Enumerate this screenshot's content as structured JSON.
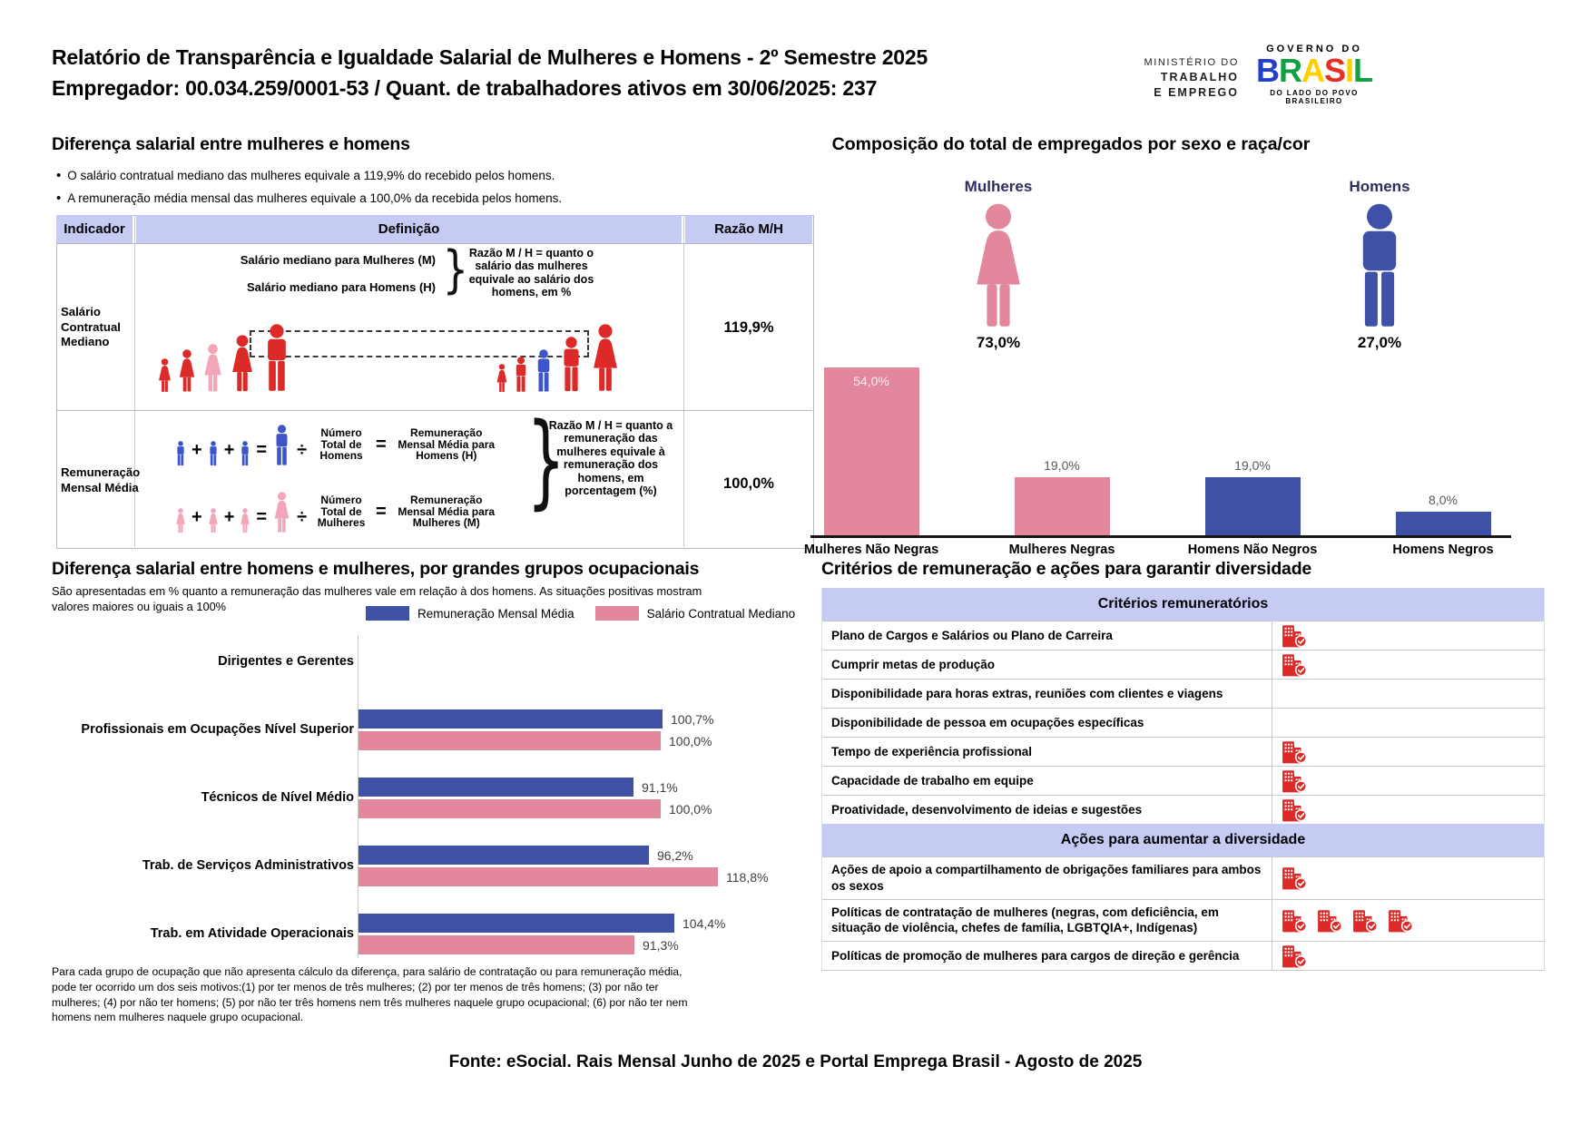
{
  "colors": {
    "pink": "#e2879c",
    "blue": "#3e51a7",
    "red": "#db2a28",
    "light_pink": "#f2a6b8",
    "figure_blue": "#3c55c8",
    "lavender": "#c6cbf4",
    "navy_text": "#2e2c60",
    "gray_label": "#595959"
  },
  "header": {
    "title_line1": "Relatório de Transparência e Igualdade Salarial de Mulheres e Homens - 2º Semestre 2025",
    "title_line2": "Empregador: 00.034.259/0001-53 / Quant. de trabalhadores ativos em 30/06/2025: 237",
    "ministry_logo": {
      "line1": "MINISTÉRIO DO",
      "line2": "TRABALHO",
      "line3": "E EMPREGO"
    },
    "gov_logo": {
      "top": "GOVERNO DO",
      "name": "BRASIL",
      "letters": [
        {
          "ch": "B",
          "color": "#2540c8"
        },
        {
          "ch": "R",
          "color": "#12a141"
        },
        {
          "ch": "A",
          "color": "#ffcf00"
        },
        {
          "ch": "S",
          "color": "#e23125"
        },
        {
          "ch": "I",
          "color": "#ffcf00"
        },
        {
          "ch": "L",
          "color": "#12a141"
        }
      ],
      "tagline": "DO LADO DO POVO BRASILEIRO"
    }
  },
  "salary_gap": {
    "heading": "Diferença salarial entre mulheres e homens",
    "bullets": [
      "O salário contratual mediano das mulheres equivale a 119,9% do recebido pelos homens.",
      "A remuneração média mensal das mulheres equivale a 100,0% da recebida pelos homens."
    ],
    "table": {
      "headers": [
        "Indicador",
        "Definição",
        "Razão M/H"
      ],
      "brace": "}",
      "operators": {
        "plus": "+",
        "equals": "=",
        "divide": "÷"
      },
      "rows": [
        {
          "indicator": "Salário Contratual Mediano",
          "def_line1": "Salário mediano para Mulheres (M)",
          "def_line2": "Salário mediano para Homens (H)",
          "note": "Razão M / H = quanto o salário das mulheres equivale ao salário dos homens, em %",
          "ratio": "119,9%"
        },
        {
          "indicator": "Remuneração Mensal Média",
          "men_formula": {
            "count_label": "Número Total de Homens",
            "result_label": "Remuneração Mensal Média para Homens (H)"
          },
          "women_formula": {
            "count_label": "Número Total de Mulheres",
            "result_label": "Remuneração Mensal Média para Mulheres (M)"
          },
          "note": "Razão M / H = quanto a remuneração das mulheres equivale à remuneração dos homens, em porcentagem (%)",
          "ratio": "100,0%"
        }
      ]
    }
  },
  "composition": {
    "heading": "Composição do total de empregados por sexo e raça/cor",
    "female": {
      "label": "Mulheres",
      "value": "73,0%",
      "icon": "woman-silhouette"
    },
    "male": {
      "label": "Homens",
      "value": "27,0%",
      "icon": "man-silhouette"
    },
    "chart_data": {
      "type": "bar",
      "categories": [
        "Mulheres Não Negras",
        "Mulheres Negras",
        "Homens Não Negros",
        "Homens Negros"
      ],
      "values": [
        54.0,
        19.0,
        19.0,
        8.0
      ],
      "labels": [
        "54,0%",
        "19,0%",
        "19,0%",
        "8,0%"
      ],
      "bar_colors": [
        "pink",
        "pink",
        "blue",
        "blue"
      ],
      "ylim": [
        0,
        60
      ],
      "grid": false,
      "value_label_position": [
        "inside-top",
        "above",
        "above",
        "above"
      ]
    }
  },
  "occupational": {
    "heading": "Diferença salarial entre homens e mulheres, por grandes grupos ocupacionais",
    "subtitle": "São apresentadas em % quanto a remuneração das mulheres vale em relação à dos homens. As situações positivas mostram valores maiores ou iguais a 100%",
    "legend": [
      "Remuneração Mensal Média",
      "Salário Contratual Mediano"
    ],
    "chart_data": {
      "type": "bar",
      "orientation": "horizontal",
      "unit": "%",
      "series_names": [
        "Remuneração Mensal Média",
        "Salário Contratual Mediano"
      ],
      "series_colors": [
        "blue",
        "pink"
      ],
      "groups": [
        {
          "label": "Dirigentes e Gerentes",
          "remuneracao_mensal_media": null,
          "salario_contratual_mediano": null,
          "value_labels": [
            null,
            null
          ]
        },
        {
          "label": "Profissionais em Ocupações Nível Superior",
          "remuneracao_mensal_media": 100.7,
          "salario_contratual_mediano": 100.0,
          "value_labels": [
            "100,7%",
            "100,0%"
          ]
        },
        {
          "label": "Técnicos de Nível Médio",
          "remuneracao_mensal_media": 91.1,
          "salario_contratual_mediano": 100.0,
          "value_labels": [
            "91,1%",
            "100,0%"
          ]
        },
        {
          "label": "Trab. de Serviços Administrativos",
          "remuneracao_mensal_media": 96.2,
          "salario_contratual_mediano": 118.8,
          "value_labels": [
            "96,2%",
            "118,8%"
          ]
        },
        {
          "label": "Trab. em Atividade Operacionais",
          "remuneracao_mensal_media": 104.4,
          "salario_contratual_mediano": 91.3,
          "value_labels": [
            "104,4%",
            "91,3%"
          ]
        }
      ]
    },
    "footnote": "Para cada grupo de ocupação que não apresenta cálculo da diferença, para salário de contratação ou para remuneração média, pode ter ocorrido um dos seis motivos:(1) por ter menos de três mulheres; (2) por ter menos de três homens; (3) por não ter mulheres; (4) por não ter homens; (5) por não ter três homens nem três mulheres naquele grupo ocupacional; (6) por não ter nem homens nem mulheres naquele grupo ocupacional."
  },
  "criteria": {
    "heading": "Critérios de remuneração e ações para garantir diversidade",
    "icon_name": "building-check-icon",
    "sections": [
      {
        "title": "Critérios remuneratórios",
        "rows": [
          {
            "label": "Plano de Cargos e Salários ou Plano de Carreira",
            "icons": 1
          },
          {
            "label": "Cumprir metas de produção",
            "icons": 1
          },
          {
            "label": "Disponibilidade para horas extras, reuniões com clientes e viagens",
            "icons": 0
          },
          {
            "label": "Disponibilidade de pessoa em ocupações específicas",
            "icons": 0
          },
          {
            "label": "Tempo de experiência profissional",
            "icons": 1
          },
          {
            "label": "Capacidade de trabalho em equipe",
            "icons": 1
          },
          {
            "label": "Proatividade, desenvolvimento de ideias e sugestões",
            "icons": 1
          }
        ]
      },
      {
        "title": "Ações para aumentar a diversidade",
        "rows": [
          {
            "label": "Ações de apoio a compartilhamento de obrigações familiares para ambos os sexos",
            "icons": 1
          },
          {
            "label": "Políticas de contratação de mulheres (negras, com deficiência, em situação de violência, chefes de família, LGBTQIA+, Indígenas)",
            "icons": 4
          },
          {
            "label": "Políticas de promoção de mulheres para cargos de direção e gerência",
            "icons": 1
          }
        ]
      }
    ]
  },
  "footer": {
    "source": "Fonte: eSocial. Rais Mensal Junho de 2025 e Portal Emprega Brasil - Agosto de 2025"
  }
}
